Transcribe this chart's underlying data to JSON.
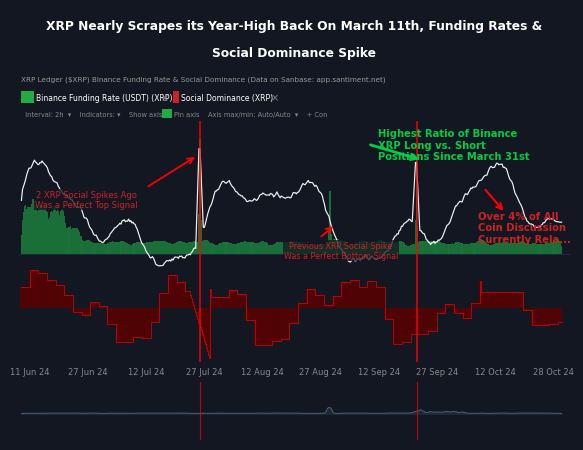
{
  "title_line1": "XRP Nearly Scrapes its Year-High Back On March 11th, Funding Rates &",
  "title_line2": "Social Dominance Spike",
  "subtitle": "XRP Ledger ($XRP) Binance Funding Rate & Social Dominance (Data on Sanbase: app.santiment.net)",
  "bg_color": "#131722",
  "chart_bg": "#131722",
  "title_bg": "#1c2035",
  "toolbar_bg": "#1a1e30",
  "x_labels": [
    "11 Jun 24",
    "27 Jun 24",
    "12 Jul 24",
    "27 Jul 24",
    "12 Aug 24",
    "27 Aug 24",
    "12 Sep 24",
    "27 Sep 24",
    "12 Oct 24",
    "28 Oct 24"
  ],
  "ann1_text": "2 XRP Social Spikes Ago\nWas a Perfect Top Signal",
  "ann2_text": "Previous XRP Social Spike\nWas a Perfect Bottom Signal",
  "ann3_text": "Highest Ratio of Binance\nXRP Long vs. Short\nPositions Since March 31st",
  "ann4_text": "Over 4% of All\nCoin Discussion\nCurrently Rela...",
  "green_color": "#1a7a3a",
  "red_color": "#cc0000",
  "dark_red": "#5c0000",
  "white_line": "#ffffff",
  "ann_red": "#cc2222",
  "ann_green": "#00cc44"
}
